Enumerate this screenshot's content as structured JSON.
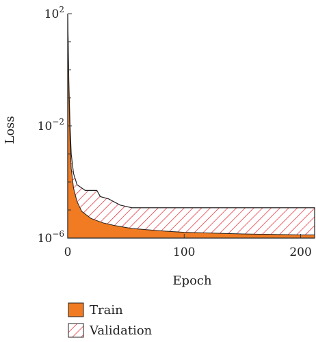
{
  "chart_data": {
    "type": "area",
    "xlabel": "Epoch",
    "ylabel": "Loss",
    "yscale": "log",
    "xlim": [
      0,
      212
    ],
    "ylim": [
      1e-06,
      100
    ],
    "xticks": [
      {
        "value": 0,
        "label": "0"
      },
      {
        "value": 100,
        "label": "100"
      },
      {
        "value": 200,
        "label": "200"
      }
    ],
    "yticks": [
      {
        "value": 1e-06,
        "base": "10",
        "exp": "−6"
      },
      {
        "value": 0.01,
        "base": "10",
        "exp": "−2"
      },
      {
        "value": 100,
        "base": "10",
        "exp": "2"
      }
    ],
    "legend_position": "bottom-left",
    "series": [
      {
        "name": "Train",
        "fill": "solid",
        "color": "#f07b22",
        "x": [
          0,
          1,
          2,
          3,
          5,
          8,
          12,
          20,
          30,
          40,
          55,
          80,
          100,
          150,
          200,
          212
        ],
        "y": [
          100,
          0.2,
          0.003,
          0.0003,
          6e-05,
          2e-05,
          9e-06,
          5e-06,
          3.5e-06,
          2.8e-06,
          2.2e-06,
          1.8e-06,
          1.6e-06,
          1.4e-06,
          1.3e-06,
          1.3e-06
        ]
      },
      {
        "name": "Validation",
        "fill": "hatch",
        "color": "#e8202a",
        "x": [
          0,
          1,
          2,
          3,
          5,
          8,
          15,
          20,
          25,
          28,
          35,
          45,
          55,
          212
        ],
        "y": [
          100,
          0.3,
          0.01,
          0.001,
          0.0002,
          8e-05,
          5e-05,
          5e-05,
          5e-05,
          3e-05,
          2.5e-05,
          1.5e-05,
          1.2e-05,
          1.2e-05
        ]
      }
    ]
  }
}
